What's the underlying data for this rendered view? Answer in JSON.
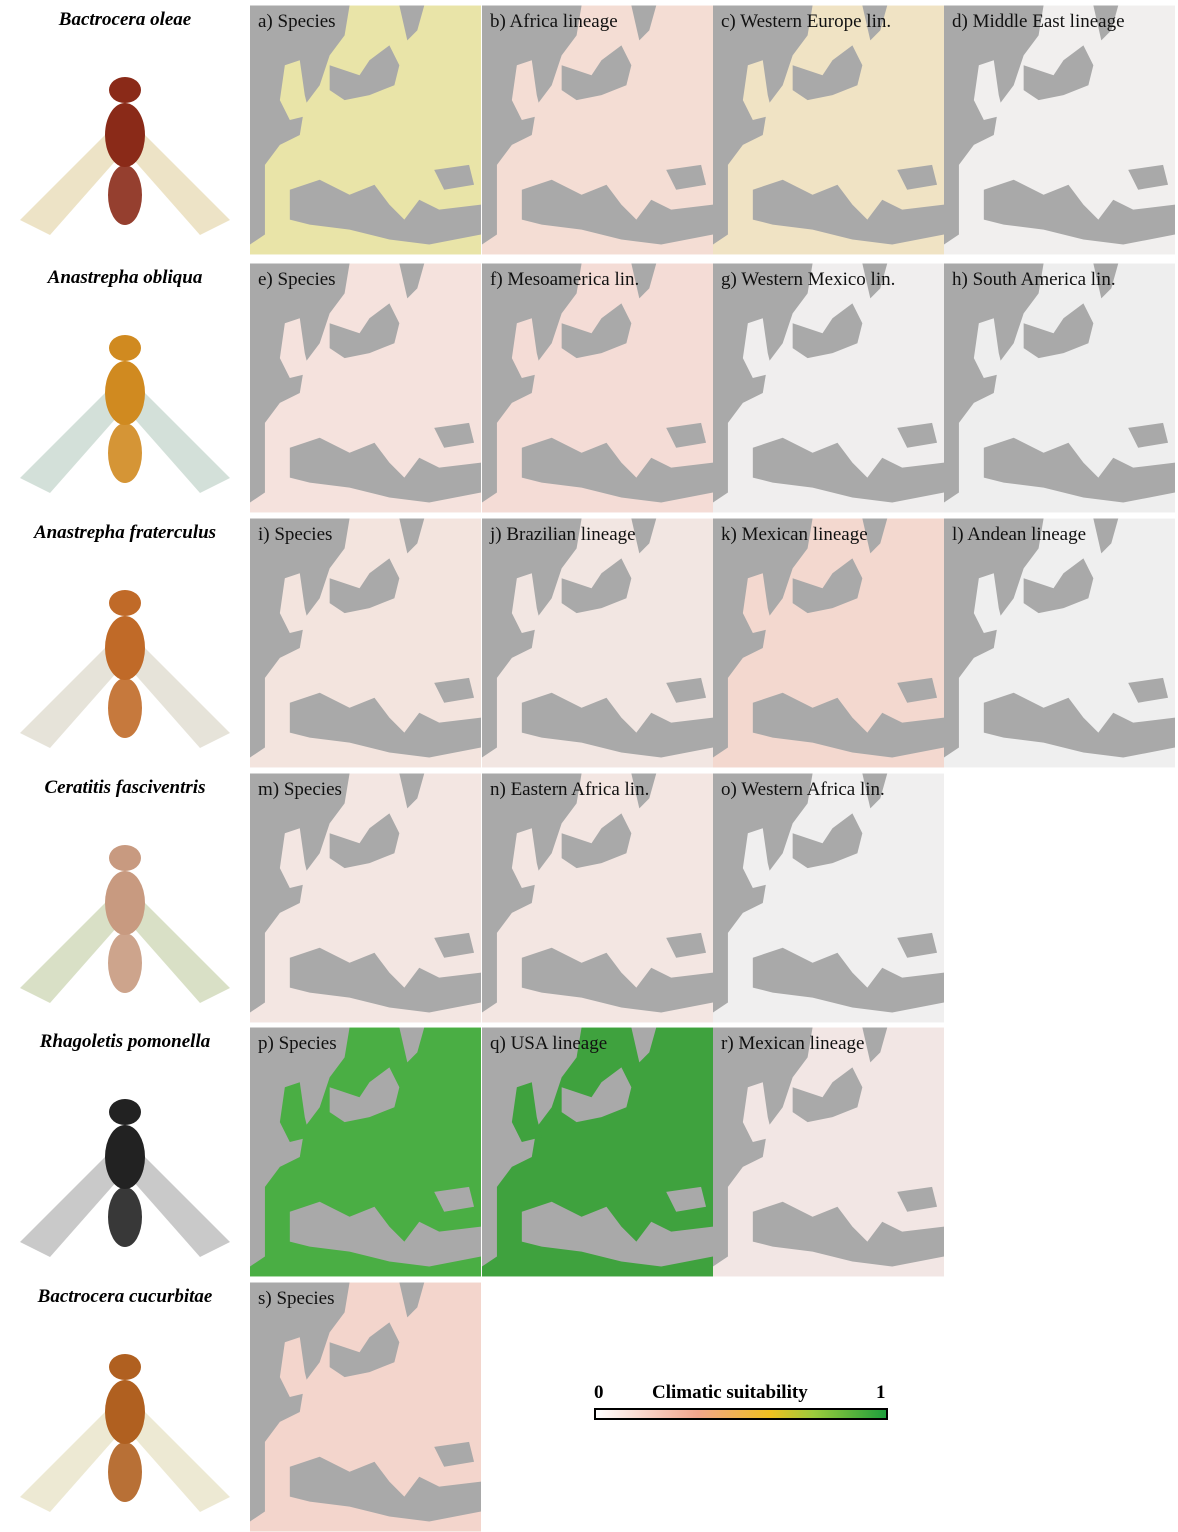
{
  "rows": [
    {
      "species": "Bactrocera oleae",
      "panels": [
        "a) Species",
        "b) Africa lineage",
        "c) Western Europe lin.",
        "d) Middle East lineage"
      ]
    },
    {
      "species": "Anastrepha obliqua",
      "panels": [
        "e) Species",
        "f) Mesoamerica lin.",
        "g) Western Mexico lin.",
        "h) South America lin."
      ]
    },
    {
      "species": "Anastrepha fraterculus",
      "panels": [
        "i) Species",
        "j) Brazilian lineage",
        "k) Mexican lineage",
        "l) Andean lineage"
      ]
    },
    {
      "species": "Ceratitis fasciventris",
      "panels": [
        "m) Species",
        "n) Eastern Africa lin.",
        "o) Western Africa lin."
      ]
    },
    {
      "species": "Rhagoletis pomonella",
      "panels": [
        "p) Species",
        "q) USA lineage",
        "r) Mexican lineage"
      ]
    },
    {
      "species": "Bactrocera cucurbitae",
      "panels": [
        "s) Species"
      ]
    }
  ],
  "legend": {
    "title": "Climatic suitability",
    "min": 0,
    "max": 1
  }
}
